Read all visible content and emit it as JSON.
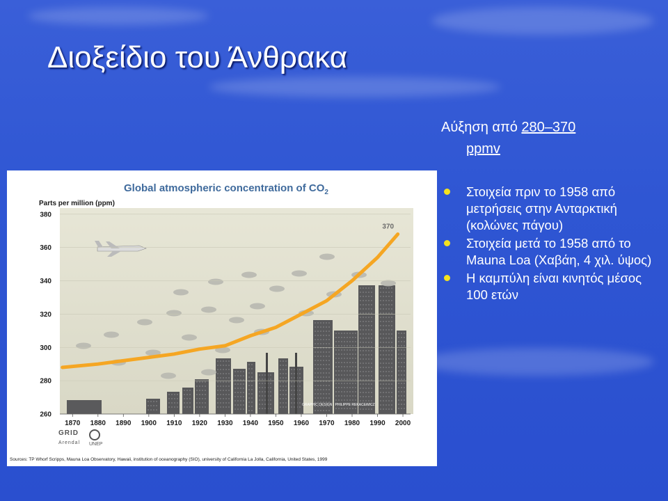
{
  "slide": {
    "title": "Διοξείδιο του Άνθρακα",
    "increase_prefix": "Αύξηση από ",
    "increase_range": "280–370",
    "increase_unit": "ppmv",
    "bullets": [
      "Στοιχεία πριν το 1958 από μετρήσεις στην Ανταρκτική (κολώνες πάγου)",
      "Στοιχεία μετά το 1958 από το Mauna Loa (Χαβάη, 4 χιλ. ύψος)",
      "Η καμπύλη είναι κινητός μέσος 100 ετών"
    ],
    "bullet_color": "#f4e21e"
  },
  "figure": {
    "source_text": "Sources: TP Whorf  Scripps, Mauna Loa Observatory, Hawaii, institution of oceanography (SIO), university of California La Jolla, California, United States, 1999",
    "design_credit": "GRAPHIC DESIGN : PHILIPPE REKACEWICZ",
    "logo_grid": "GRID",
    "logo_arendal": "Arendal",
    "logo_unep": "UNEP"
  },
  "chart_data": {
    "type": "line",
    "title": "Global atmospheric concentration of CO",
    "title_subscript": "2",
    "ylabel": "Parts per million (ppm)",
    "x_ticks": [
      1870,
      1880,
      1890,
      1900,
      1910,
      1920,
      1930,
      1940,
      1950,
      1960,
      1970,
      1980,
      1990,
      2000
    ],
    "y_ticks": [
      260,
      280,
      300,
      320,
      340,
      360,
      380
    ],
    "xlim": [
      1865,
      2003
    ],
    "ylim": [
      260,
      382
    ],
    "end_label": "370",
    "line_color": "#f5a623",
    "series": [
      {
        "x": [
          1866,
          1880,
          1890,
          1900,
          1910,
          1920,
          1930,
          1940,
          1950,
          1960,
          1970,
          1980,
          1990,
          1998
        ],
        "y": [
          288,
          290,
          292,
          294,
          296,
          299,
          301,
          307,
          312,
          320,
          328,
          340,
          354,
          368
        ]
      }
    ]
  }
}
